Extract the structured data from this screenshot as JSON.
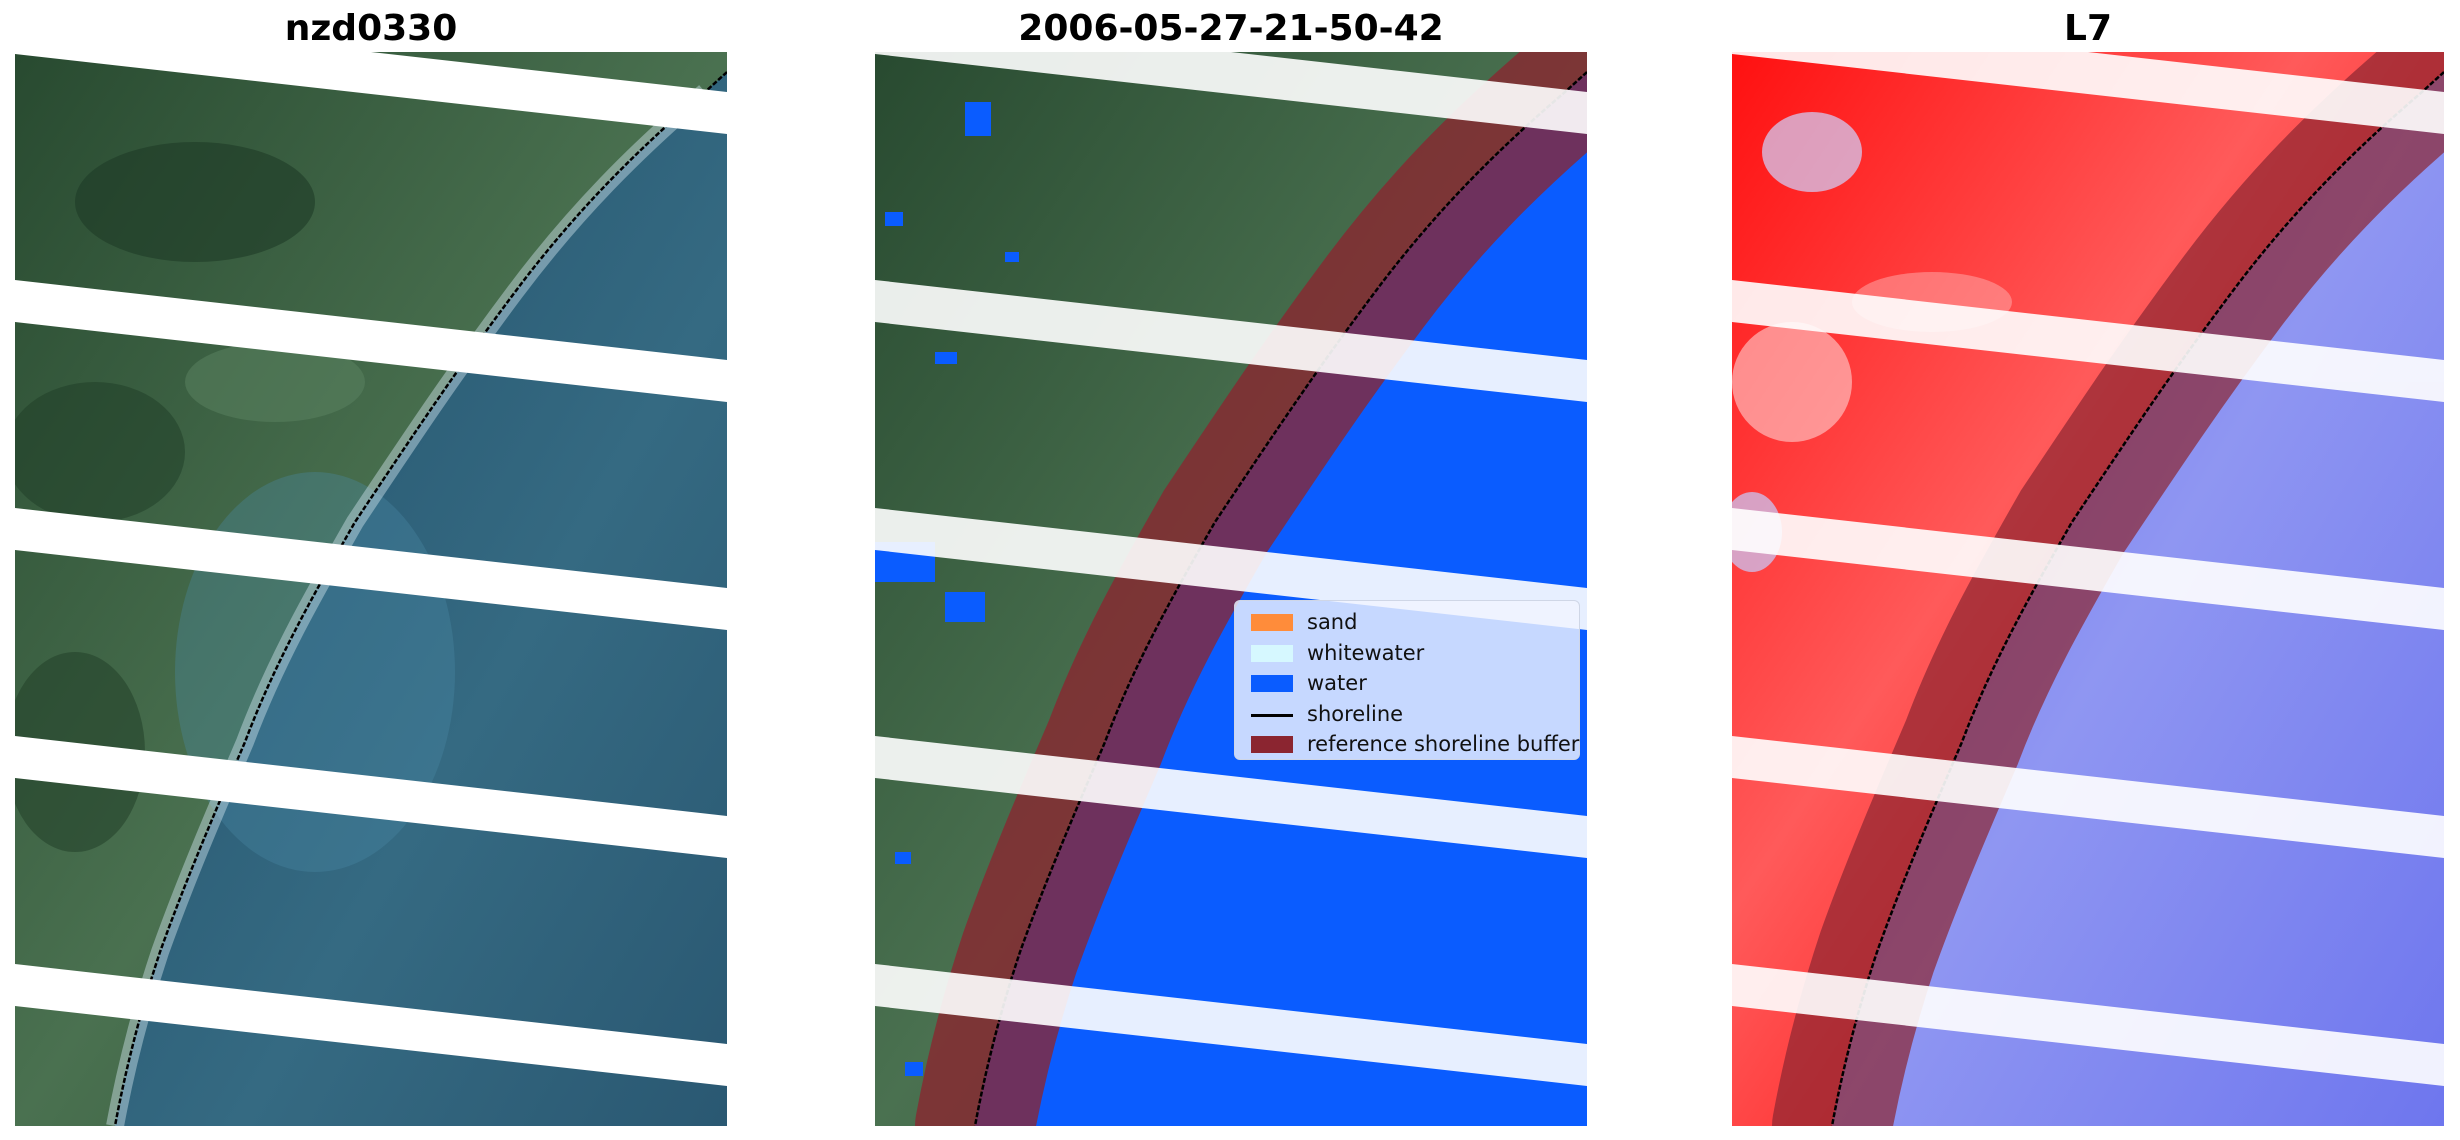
{
  "panels": [
    {
      "title": "nzd0330",
      "kind": "rgb"
    },
    {
      "title": "2006-05-27-21-50-42",
      "kind": "classified"
    },
    {
      "title": "L7",
      "kind": "index"
    }
  ],
  "legend": {
    "items": [
      {
        "label": "sand",
        "color": "#ff8c3a",
        "type": "patch"
      },
      {
        "label": "whitewater",
        "color": "#d6f8ff",
        "type": "patch"
      },
      {
        "label": "water",
        "color": "#0a5cff",
        "type": "patch"
      },
      {
        "label": "shoreline",
        "color": "#000000",
        "type": "line"
      },
      {
        "label": "reference shoreline buffer",
        "color": "#8b2530",
        "type": "patch"
      }
    ]
  },
  "colors": {
    "land_rgb": "#3e6446",
    "sea_rgb": "#2f5a73",
    "water_class": "#0a5cff",
    "buffer": "#8b2530",
    "index_positive": "#ff1c1c",
    "index_negative": "#7a82ee",
    "stripe": "#ffffff"
  }
}
